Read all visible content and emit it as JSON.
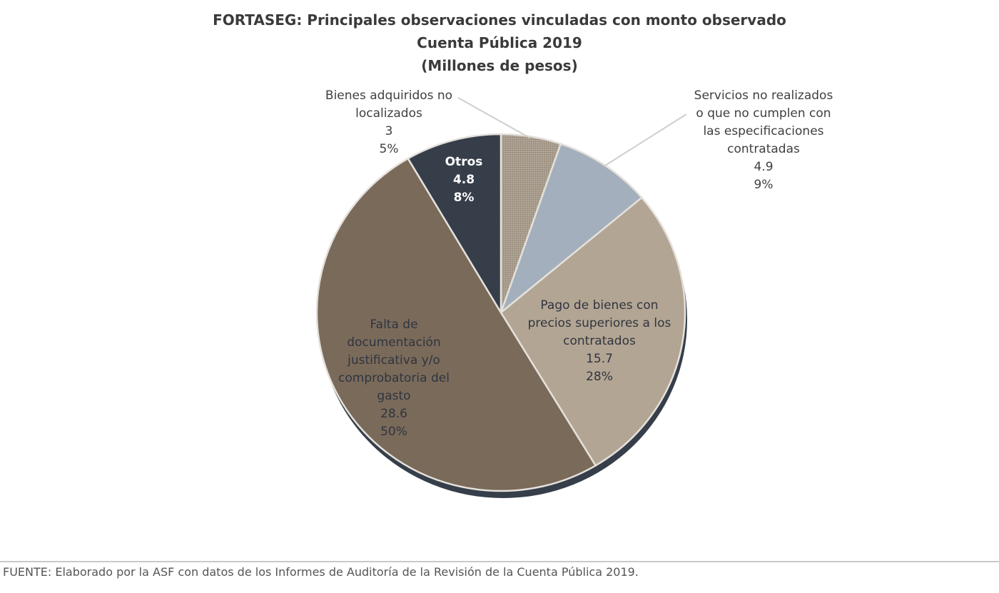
{
  "chart_data": {
    "type": "pie",
    "title": [
      "FORTASEG: Principales observaciones vinculadas con monto observado",
      "Cuenta Pública 2019",
      "(Millones de pesos)"
    ],
    "slices": [
      {
        "label": [
          "Bienes adquiridos no",
          "localizados"
        ],
        "value": 3,
        "value_text": "3",
        "percent": "5%",
        "color": "#a09486",
        "pattern": "dotted"
      },
      {
        "label": [
          "Servicios no realizados",
          "o que no cumplen con",
          "las especificaciones",
          "contratadas"
        ],
        "value": 4.9,
        "value_text": "4.9",
        "percent": "9%",
        "color": "#a3afbc"
      },
      {
        "label": [
          "Pago de bienes con",
          "precios superiores a los",
          "contratados"
        ],
        "value": 15.7,
        "value_text": "15.7",
        "percent": "28%",
        "color": "#b3a593"
      },
      {
        "label": [
          "Falta de",
          "documentación",
          "justificativa y/o",
          "comprobatoria del",
          "gasto"
        ],
        "value": 28.6,
        "value_text": "28.6",
        "percent": "50%",
        "color": "#7a6a5a"
      },
      {
        "label": [
          "Otros"
        ],
        "value": 4.8,
        "value_text": "4.8",
        "percent": "8%",
        "color": "#363e4a"
      }
    ],
    "start": "top",
    "direction": "clockwise",
    "shadow_color": "#363e4a"
  },
  "footer": "FUENTE: Elaborado por la ASF con datos de los Informes de Auditoría de la Revisión de la Cuenta Pública 2019."
}
